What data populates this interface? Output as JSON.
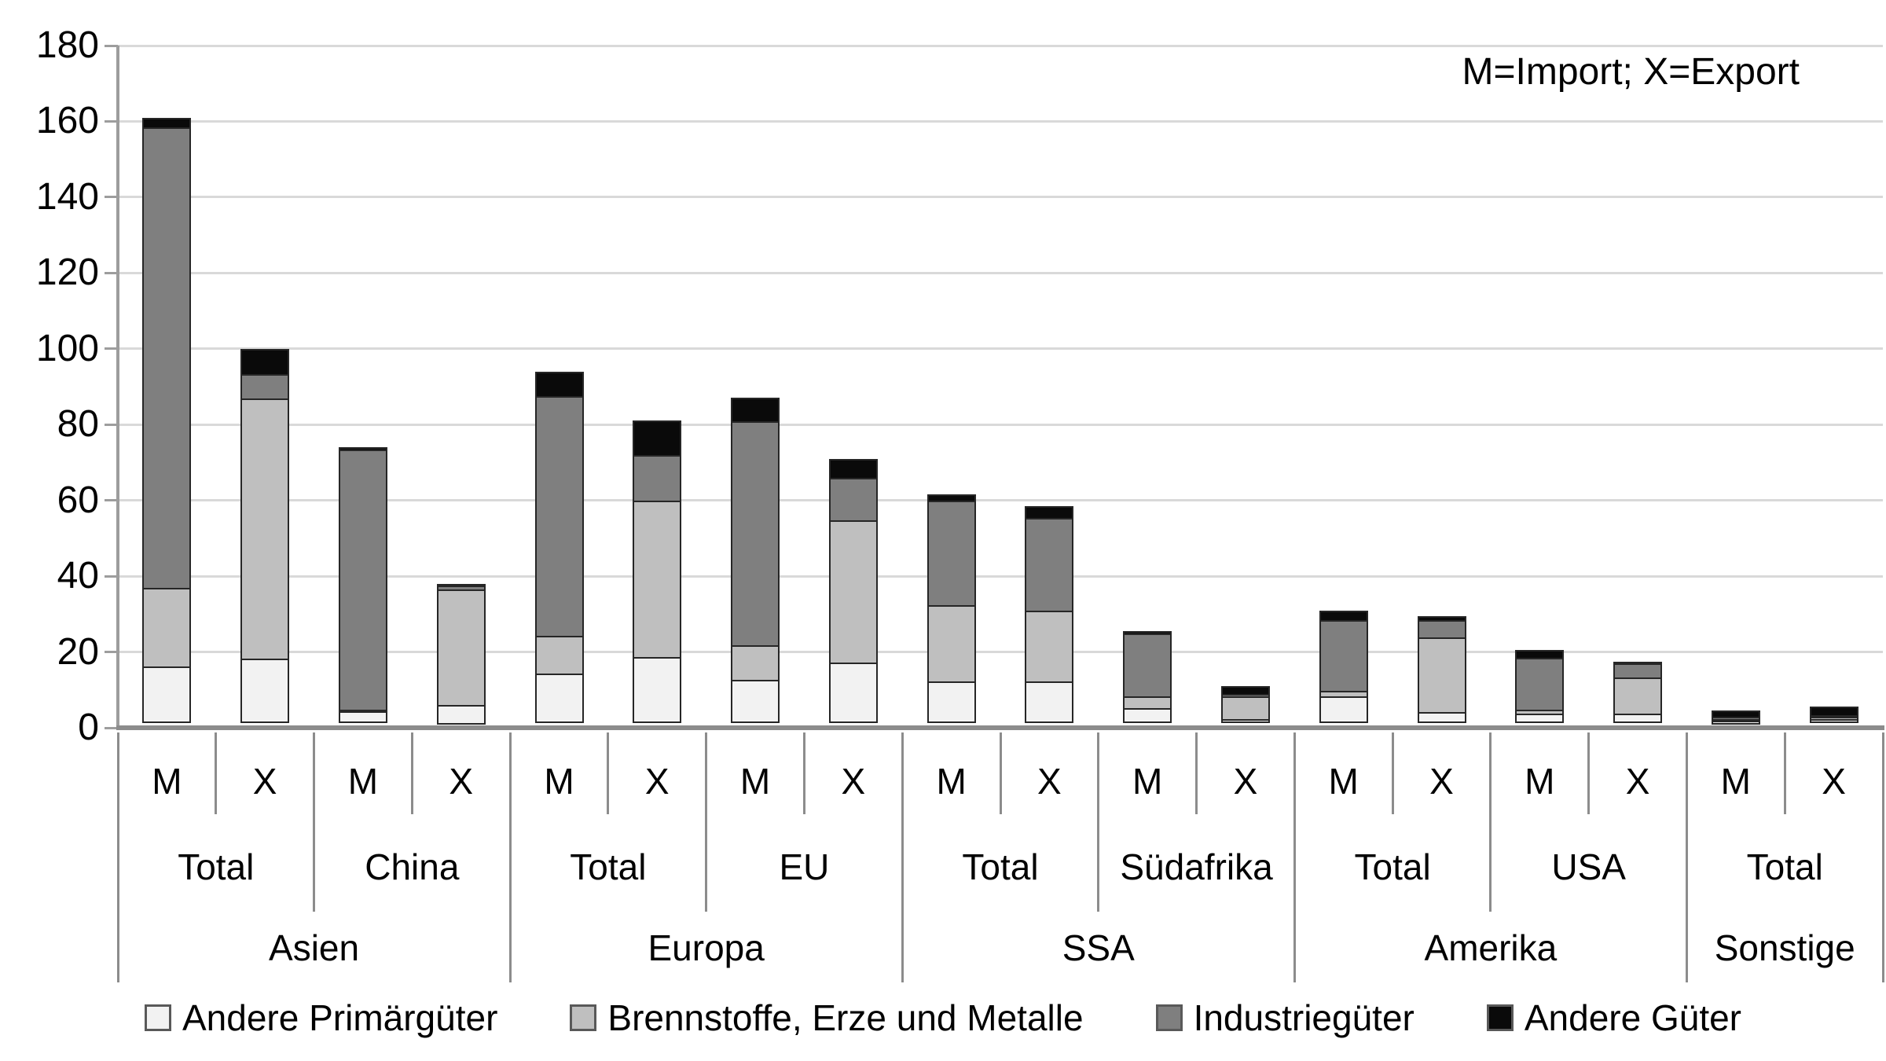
{
  "note": "M=Import; X=Export",
  "colors": {
    "background": "#ffffff",
    "gridline": "#d9d9d9",
    "axis": "#8c8c8c",
    "segment_border": "#262626",
    "text": "#000000"
  },
  "chart_data": {
    "type": "bar",
    "stacked": true,
    "note": "M=Import; X=Export",
    "legend_position": "bottom",
    "grid": true,
    "y_axis": {
      "min": 0,
      "max": 180,
      "step": 20,
      "tick_labels": [
        "0",
        "20",
        "40",
        "60",
        "80",
        "100",
        "120",
        "140",
        "160",
        "180"
      ]
    },
    "bar_label_meaning": {
      "M": "Import",
      "X": "Export"
    },
    "series": [
      {
        "name": "Andere Primärgüter",
        "color": "#f2f2f2"
      },
      {
        "name": "Brennstoffe, Erze und Metalle",
        "color": "#bfbfbf"
      },
      {
        "name": "Industriegüter",
        "color": "#7f7f7f"
      },
      {
        "name": "Andere Güter",
        "color": "#0a0a0a"
      }
    ],
    "groups": [
      {
        "label": "Asien",
        "subgroups": [
          {
            "label": "Total",
            "bars": [
              {
                "label": "M",
                "values": [
                  15,
                  21,
                  122,
                  3
                ]
              },
              {
                "label": "X",
                "values": [
                  17,
                  69,
                  7,
                  7
                ]
              }
            ]
          },
          {
            "label": "China",
            "bars": [
              {
                "label": "M",
                "values": [
                  3,
                  1,
                  69,
                  1
                ]
              },
              {
                "label": "X",
                "values": [
                  5,
                  31,
                  1.5,
                  0.5
                ]
              }
            ]
          }
        ]
      },
      {
        "label": "Europa",
        "subgroups": [
          {
            "label": "Total",
            "bars": [
              {
                "label": "M",
                "values": [
                  13,
                  10.5,
                  63.5,
                  7
                ]
              },
              {
                "label": "X",
                "values": [
                  17.5,
                  41.5,
                  12.5,
                  9.5
                ]
              }
            ]
          },
          {
            "label": "EU",
            "bars": [
              {
                "label": "M",
                "values": [
                  11.5,
                  9.5,
                  59.5,
                  6.5
                ]
              },
              {
                "label": "X",
                "values": [
                  16,
                  38,
                  11.5,
                  5.5
                ]
              }
            ]
          }
        ]
      },
      {
        "label": "SSA",
        "subgroups": [
          {
            "label": "Total",
            "bars": [
              {
                "label": "M",
                "values": [
                  11,
                  20.5,
                  28,
                  2
                ]
              },
              {
                "label": "X",
                "values": [
                  11,
                  19,
                  25,
                  3.5
                ]
              }
            ]
          },
          {
            "label": "Südafrika",
            "bars": [
              {
                "label": "M",
                "values": [
                  4,
                  3.5,
                  17,
                  1
                ]
              },
              {
                "label": "X",
                "values": [
                  1,
                  6.5,
                  1,
                  2.5
                ]
              }
            ]
          }
        ]
      },
      {
        "label": "Amerika",
        "subgroups": [
          {
            "label": "Total",
            "bars": [
              {
                "label": "M",
                "values": [
                  7,
                  2,
                  19,
                  3
                ]
              },
              {
                "label": "X",
                "values": [
                  3,
                  20,
                  5,
                  1.5
                ]
              }
            ]
          },
          {
            "label": "USA",
            "bars": [
              {
                "label": "M",
                "values": [
                  2.5,
                  1.5,
                  14,
                  2.5
                ]
              },
              {
                "label": "X",
                "values": [
                  2.5,
                  10,
                  4,
                  1
                ]
              }
            ]
          }
        ]
      },
      {
        "label": "Sonstige",
        "subgroups": [
          {
            "label": "Total",
            "bars": [
              {
                "label": "M",
                "values": [
                  1,
                  0.5,
                  1,
                  2
                ]
              },
              {
                "label": "X",
                "values": [
                  1,
                  1,
                  1,
                  2.5
                ]
              }
            ]
          }
        ]
      }
    ]
  }
}
